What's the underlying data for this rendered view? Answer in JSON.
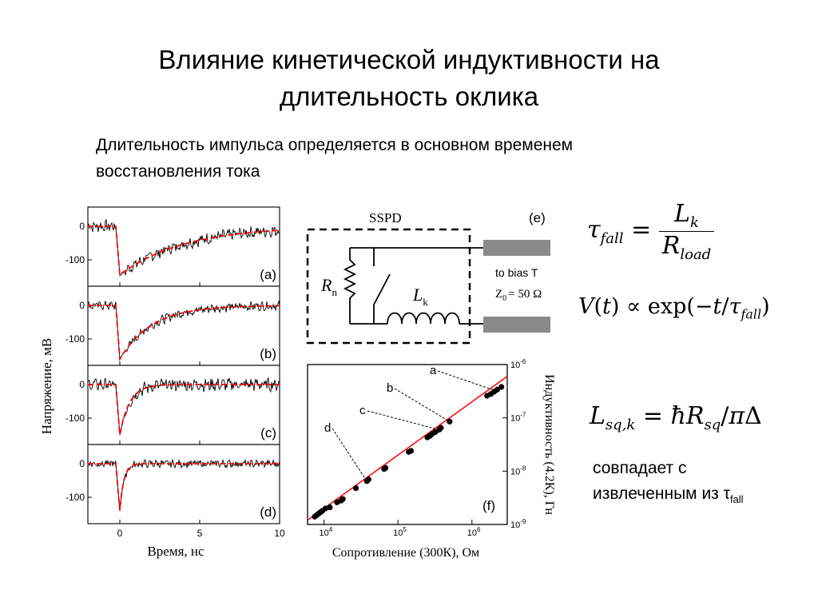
{
  "title_line1": "Влияние кинетической индуктивности на",
  "title_line2": "длительность оклика",
  "subtitle_line1": "Длительность импульса определяется в основном временем",
  "subtitle_line2": "восстановления тока",
  "formulas": {
    "tau_fall": "τfall = Lk / Rload",
    "voltage": "V(t) ∝ exp(−t/τfall)",
    "inductance": "Lsq,k = ħRsq/πΔ"
  },
  "note": {
    "line1": "совпадает с",
    "line2_prefix": "извлеченным из τ",
    "line2_sub": "fall"
  },
  "circuit": {
    "sspd_label": "SSPD",
    "panel_label": "(e)",
    "rn": "R",
    "rn_sub": "n",
    "lk": "L",
    "lk_sub": "k",
    "bias": "to bias T",
    "z0": "Z",
    "z0_sub": "0",
    "z0_value": "= 50 Ω"
  },
  "chart_data": [
    {
      "type": "line",
      "xlabel": "Время, нс",
      "ylabel": "Напряжение, мВ",
      "xlim": [
        -2,
        10
      ],
      "x_ticks": [
        0,
        5,
        10
      ],
      "y_ticks": [
        0,
        -100
      ],
      "panels": [
        {
          "label": "(a)",
          "peak": -145,
          "tau": 4.0,
          "noise": 18
        },
        {
          "label": "(b)",
          "peak": -160,
          "tau": 2.0,
          "noise": 14
        },
        {
          "label": "(c)",
          "peak": -150,
          "tau": 0.6,
          "noise": 20
        },
        {
          "label": "(d)",
          "peak": -140,
          "tau": 0.25,
          "noise": 12
        }
      ],
      "series": [
        {
          "style": "measured",
          "color": "#000000"
        },
        {
          "style": "fit",
          "color": "#ff0000"
        }
      ]
    },
    {
      "type": "scatter",
      "label": "(f)",
      "xlabel": "Сопротивление (300К), Ом",
      "ylabel": "Индуктивность (4.2К), Гн",
      "xscale": "log",
      "yscale": "log",
      "xlim": [
        6000,
        3000000
      ],
      "ylim": [
        1e-09,
        1e-06
      ],
      "x_tick_labels": [
        "10",
        "10",
        "10"
      ],
      "x_tick_exps": [
        "4",
        "5",
        "6"
      ],
      "y_tick_labels": [
        "10",
        "10",
        "10",
        "10"
      ],
      "y_tick_exps": [
        "-9",
        "-8",
        "-7",
        "-6"
      ],
      "fit_line": {
        "x": [
          6000,
          3000000
        ],
        "y": [
          1.2e-09,
          6e-07
        ],
        "color": "#ff0000"
      },
      "points": [
        [
          7500,
          1.4e-09
        ],
        [
          8000,
          1.5e-09
        ],
        [
          8500,
          1.6e-09
        ],
        [
          9000,
          1.7e-09
        ],
        [
          9500,
          1.8e-09
        ],
        [
          10500,
          2e-09
        ],
        [
          12000,
          2.1e-09
        ],
        [
          15000,
          2.6e-09
        ],
        [
          17000,
          2.8e-09
        ],
        [
          18000,
          3e-09
        ],
        [
          27000,
          4.8e-09
        ],
        [
          38000,
          6.5e-09
        ],
        [
          40000,
          7e-09
        ],
        [
          65000,
          1.1e-08
        ],
        [
          68000,
          1.15e-08
        ],
        [
          140000,
          2.3e-08
        ],
        [
          150000,
          2.4e-08
        ],
        [
          250000,
          4.3e-08
        ],
        [
          270000,
          4.6e-08
        ],
        [
          290000,
          5e-08
        ],
        [
          320000,
          5.4e-08
        ],
        [
          360000,
          6e-08
        ],
        [
          380000,
          6.5e-08
        ],
        [
          500000,
          8.5e-08
        ],
        [
          1600000,
          2.6e-07
        ],
        [
          1800000,
          2.8e-07
        ],
        [
          2000000,
          3.1e-07
        ],
        [
          2200000,
          3.4e-07
        ],
        [
          2500000,
          3.8e-07
        ]
      ],
      "annotations": [
        {
          "text": "a",
          "target": [
            2000000,
            3.3e-07
          ]
        },
        {
          "text": "b",
          "target": [
            500000,
            8.5e-08
          ]
        },
        {
          "text": "c",
          "target": [
            360000,
            6e-08
          ]
        },
        {
          "text": "d",
          "target": [
            38000,
            6.5e-09
          ]
        }
      ]
    }
  ]
}
